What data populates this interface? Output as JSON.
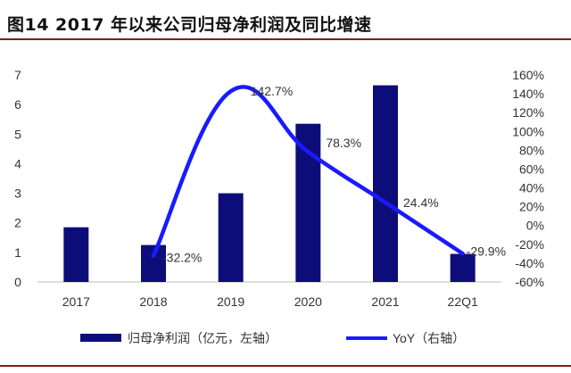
{
  "figure": {
    "title": "图14 2017 年以来公司归母净利润及同比增速"
  },
  "chart_data": {
    "type": "bar",
    "categories": [
      "2017",
      "2018",
      "2019",
      "2020",
      "2021",
      "22Q1"
    ],
    "series": [
      {
        "name": "归母净利润（亿元，左轴）",
        "type": "bar",
        "axis": "left",
        "values": [
          1.85,
          1.25,
          3.0,
          5.35,
          6.65,
          0.95
        ],
        "color": "#0d0d7a"
      },
      {
        "name": "YoY（右轴）",
        "type": "line",
        "axis": "right",
        "values": [
          null,
          -32.2,
          142.7,
          78.3,
          24.4,
          -29.9
        ],
        "labels": [
          "",
          "-32.2%",
          "142.7%",
          "78.3%",
          "24.4%",
          "-29.9%"
        ],
        "color": "#1a1aff"
      }
    ],
    "y_left": {
      "ylim": [
        0,
        7
      ],
      "ticks": [
        "0",
        "1",
        "2",
        "3",
        "4",
        "5",
        "6",
        "7"
      ]
    },
    "y_right": {
      "ylim": [
        -60,
        160
      ],
      "ticks": [
        "-60%",
        "-40%",
        "-20%",
        "0%",
        "20%",
        "40%",
        "60%",
        "80%",
        "100%",
        "120%",
        "140%",
        "160%"
      ]
    },
    "grid": false,
    "legend_position": "bottom"
  }
}
